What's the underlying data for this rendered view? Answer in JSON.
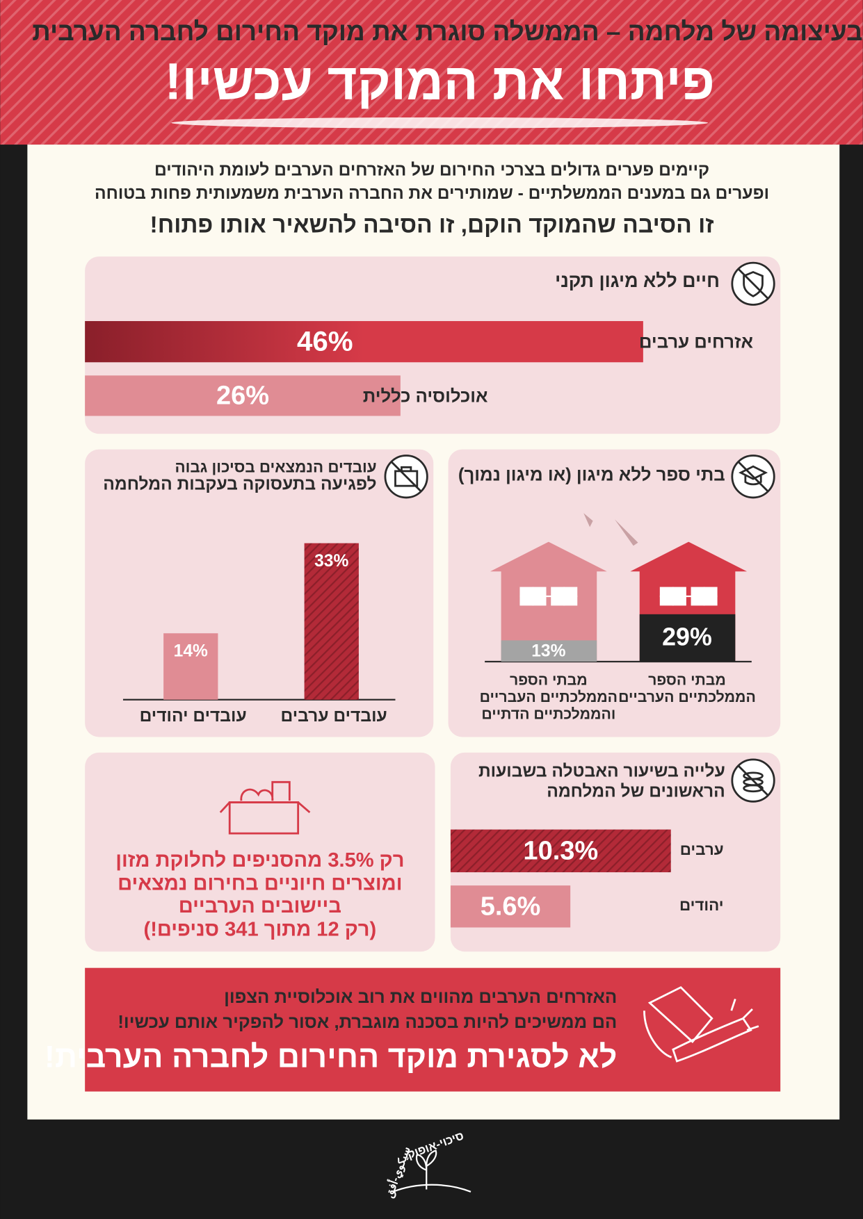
{
  "header": {
    "subtitle": "בעיצומה של מלחמה – הממשלה סוגרת את מוקד החירום לחברה הערבית",
    "title": "פיתחו את המוקד עכשיו!"
  },
  "intro": {
    "lines": [
      "קיימים פערים גדולים בצרכי החירום של האזרחים הערבים לעומת היהודים",
      "ופערים גם במענים הממשלתיים - שמותירים את החברה הערבית משמעותית פחות בטוחה",
      "זו הסיבה שהמוקד הוקם, זו הסיבה להשאיר אותו פתוח!"
    ]
  },
  "shelter": {
    "title": "חיים ללא מיגון תקני",
    "bars": [
      {
        "label": "אזרחים ערבים",
        "value": 46,
        "value_label": "46%"
      },
      {
        "label": "אוכלוסיה כללית",
        "value": 26,
        "value_label": "26%"
      }
    ]
  },
  "schools": {
    "title": "בתי ספר ללא מיגון (או מיגון נמוך)",
    "houses": [
      {
        "caption": [
          "מבתי הספר",
          "הממלכתיים הערביים"
        ],
        "value": 29,
        "value_label": "29%"
      },
      {
        "caption": [
          "מבתי הספר",
          "הממלכתיים העבריים",
          "והממלכתיים הדתיים"
        ],
        "value": 13,
        "value_label": "13%"
      }
    ]
  },
  "workers": {
    "title": [
      "עובדים הנמצאים בסיכון גבוה",
      "לפגיעה בתעסוקה בעקבות המלחמה"
    ],
    "bars": [
      {
        "label": "עובדים ערבים",
        "value": 33,
        "value_label": "33%"
      },
      {
        "label": "עובדים יהודים",
        "value": 14,
        "value_label": "14%"
      }
    ]
  },
  "food": {
    "lines": [
      "רק 3.5% מהסניפים לחלוקת מזון",
      "ומוצרים חיוניים בחירום נמצאים",
      "ביישובים הערביים",
      "(רק 12 מתוך 341 סניפים!)"
    ]
  },
  "unemployment": {
    "title": [
      "עלייה בשיעור האבטלה בשבועות",
      "הראשונים של המלחמה"
    ],
    "bars": [
      {
        "label": "ערבים",
        "value": 10.3,
        "value_label": "10.3%"
      },
      {
        "label": "יהודים",
        "value": 5.6,
        "value_label": "5.6%"
      }
    ]
  },
  "banner": {
    "lines": [
      "האזרחים הערבים מהווים את רוב אוכלוסיית הצפון",
      "הם ממשיכים להיות בסכנה מוגברת, אסור להפקיר אותם עכשיו!",
      "לא לסגירת מוקד החירום לחברה הערבית!"
    ]
  },
  "logo": {
    "hebrew": "סיכוי-אופוק",
    "arabic": "سيكوي-أفق"
  }
}
